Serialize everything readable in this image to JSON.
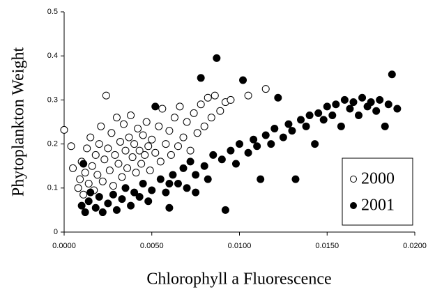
{
  "chart_data": {
    "type": "scatter",
    "x_label": "Chlorophyll a Fluorescence",
    "y_label": "Phytoplankton Weight",
    "xlim": [
      0,
      0.02
    ],
    "ylim": [
      0,
      0.5
    ],
    "xticks": [
      {
        "value": 0,
        "label": "0.0000"
      },
      {
        "value": 0.005,
        "label": "0.0050"
      },
      {
        "value": 0.01,
        "label": "0.0100"
      },
      {
        "value": 0.015,
        "label": "0.0150"
      },
      {
        "value": 0.02,
        "label": "0.0200"
      }
    ],
    "yticks": [
      0,
      0.1,
      0.2,
      0.3,
      0.4,
      0.5
    ],
    "legend": "lower right",
    "series": [
      {
        "name": "2000",
        "color": "#ffffff",
        "x": [
          0.0,
          0.0004,
          0.0005,
          0.0008,
          0.0009,
          0.001,
          0.0011,
          0.0012,
          0.0013,
          0.0014,
          0.0015,
          0.0016,
          0.0017,
          0.0018,
          0.0019,
          0.002,
          0.0021,
          0.0022,
          0.0023,
          0.0024,
          0.0025,
          0.0026,
          0.0027,
          0.0028,
          0.0029,
          0.003,
          0.0031,
          0.0032,
          0.0033,
          0.0034,
          0.0035,
          0.0036,
          0.0037,
          0.0038,
          0.0039,
          0.004,
          0.0041,
          0.0042,
          0.0043,
          0.0044,
          0.0045,
          0.0046,
          0.0047,
          0.0048,
          0.0049,
          0.005,
          0.0052,
          0.0054,
          0.0055,
          0.0056,
          0.0058,
          0.006,
          0.0061,
          0.0063,
          0.0065,
          0.0066,
          0.0068,
          0.007,
          0.0072,
          0.0074,
          0.0076,
          0.0078,
          0.008,
          0.0082,
          0.0084,
          0.0086,
          0.0089,
          0.0092,
          0.0095,
          0.0105,
          0.0115
        ],
        "values": [
          0.232,
          0.195,
          0.145,
          0.1,
          0.12,
          0.16,
          0.085,
          0.135,
          0.19,
          0.11,
          0.215,
          0.15,
          0.095,
          0.175,
          0.13,
          0.2,
          0.24,
          0.115,
          0.165,
          0.31,
          0.19,
          0.14,
          0.225,
          0.105,
          0.175,
          0.26,
          0.155,
          0.205,
          0.125,
          0.245,
          0.185,
          0.145,
          0.215,
          0.265,
          0.17,
          0.2,
          0.135,
          0.235,
          0.185,
          0.155,
          0.22,
          0.175,
          0.25,
          0.195,
          0.14,
          0.21,
          0.18,
          0.24,
          0.16,
          0.28,
          0.2,
          0.23,
          0.175,
          0.26,
          0.195,
          0.285,
          0.215,
          0.25,
          0.185,
          0.27,
          0.225,
          0.29,
          0.24,
          0.305,
          0.26,
          0.31,
          0.275,
          0.295,
          0.3,
          0.31,
          0.325
        ]
      },
      {
        "name": "2001",
        "color": "#000000",
        "x": [
          0.001,
          0.0012,
          0.0014,
          0.0011,
          0.0015,
          0.0018,
          0.002,
          0.0022,
          0.0025,
          0.0028,
          0.003,
          0.0033,
          0.0035,
          0.0038,
          0.004,
          0.0043,
          0.0045,
          0.0048,
          0.005,
          0.0052,
          0.0055,
          0.0058,
          0.006,
          0.0062,
          0.0065,
          0.0068,
          0.007,
          0.0072,
          0.0075,
          0.0078,
          0.008,
          0.0082,
          0.0085,
          0.0087,
          0.009,
          0.0092,
          0.0095,
          0.0098,
          0.01,
          0.0102,
          0.0105,
          0.0108,
          0.011,
          0.0112,
          0.0115,
          0.0118,
          0.012,
          0.0122,
          0.0125,
          0.0128,
          0.013,
          0.0132,
          0.0135,
          0.0138,
          0.014,
          0.0143,
          0.0145,
          0.0148,
          0.015,
          0.0153,
          0.0155,
          0.0158,
          0.016,
          0.0163,
          0.0165,
          0.0168,
          0.017,
          0.0173,
          0.0175,
          0.0178,
          0.018,
          0.0183,
          0.0185,
          0.0187,
          0.019,
          0.006,
          0.0075
        ],
        "values": [
          0.06,
          0.045,
          0.07,
          0.155,
          0.09,
          0.055,
          0.08,
          0.045,
          0.065,
          0.085,
          0.05,
          0.075,
          0.1,
          0.06,
          0.09,
          0.08,
          0.11,
          0.07,
          0.095,
          0.285,
          0.12,
          0.09,
          0.055,
          0.13,
          0.11,
          0.145,
          0.1,
          0.16,
          0.13,
          0.35,
          0.15,
          0.12,
          0.175,
          0.395,
          0.165,
          0.05,
          0.185,
          0.155,
          0.2,
          0.345,
          0.18,
          0.21,
          0.195,
          0.12,
          0.22,
          0.2,
          0.235,
          0.305,
          0.215,
          0.245,
          0.23,
          0.12,
          0.255,
          0.24,
          0.265,
          0.2,
          0.27,
          0.255,
          0.285,
          0.265,
          0.29,
          0.24,
          0.3,
          0.28,
          0.295,
          0.265,
          0.305,
          0.285,
          0.295,
          0.275,
          0.3,
          0.24,
          0.29,
          0.358,
          0.28,
          0.11,
          0.09
        ]
      }
    ]
  }
}
